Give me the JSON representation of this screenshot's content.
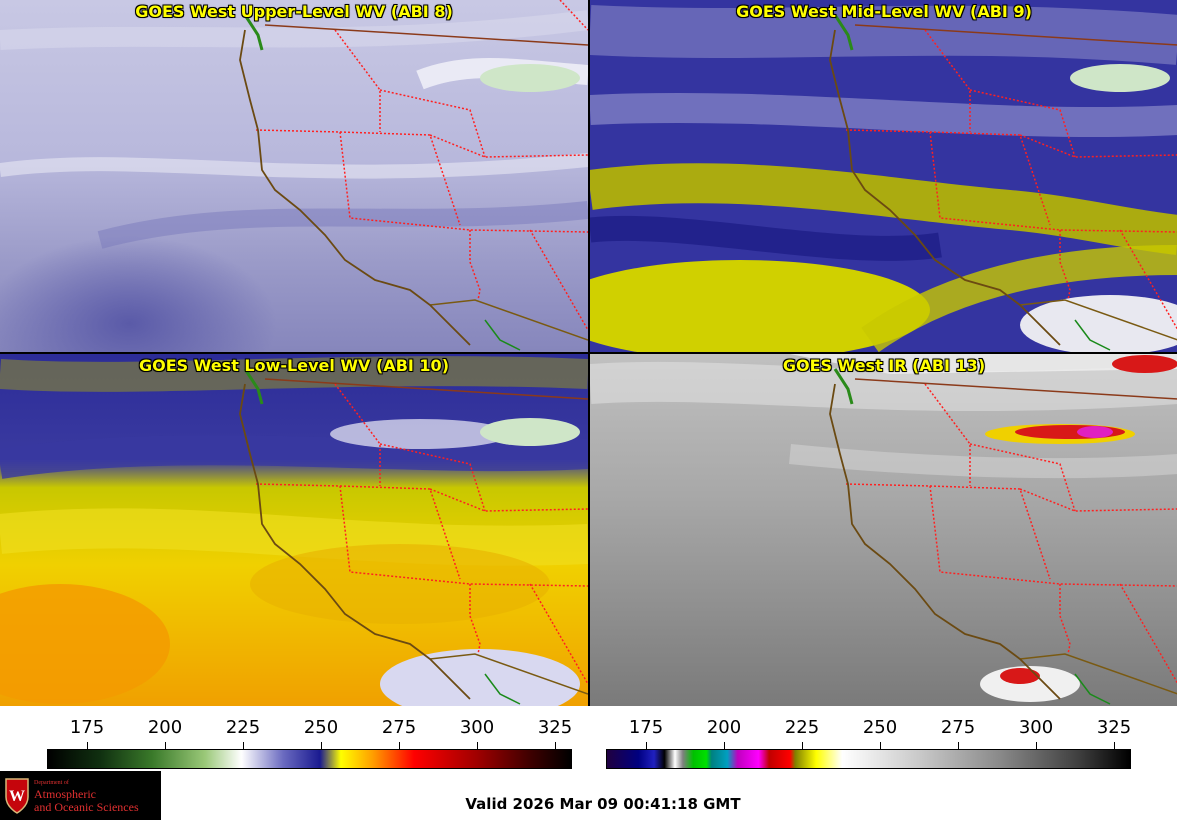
{
  "panels": [
    {
      "title": "GOES West Upper-Level WV (ABI 8)"
    },
    {
      "title": "GOES West Mid-Level WV (ABI 9)"
    },
    {
      "title": "GOES West Low-Level WV (ABI 10)"
    },
    {
      "title": "GOES West IR (ABI 13)"
    }
  ],
  "colorbars": {
    "wv": {
      "ticks": [
        "175",
        "200",
        "225",
        "250",
        "275",
        "300",
        "325"
      ]
    },
    "ir": {
      "ticks": [
        "175",
        "200",
        "225",
        "250",
        "275",
        "300",
        "325"
      ]
    }
  },
  "footer": {
    "valid_time": "Valid 2026 Mar 09 00:41:18 GMT"
  },
  "logo": {
    "department": "Department of",
    "line1": "Atmospheric",
    "line2": "and Oceanic Sciences"
  },
  "colors": {
    "title_text": "#ffff00",
    "state_borders": "#ff2020",
    "coastline": "#6b4a12",
    "county_lines": "#1a8a1a"
  }
}
